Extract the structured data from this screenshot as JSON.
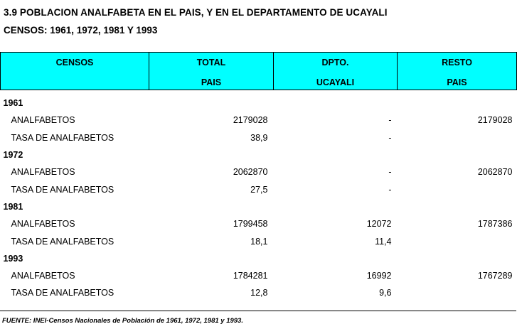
{
  "title": "3.9  POBLACION ANALFABETA EN EL PAIS, Y EN EL DEPARTAMENTO DE UCAYALI",
  "subtitle": "CENSOS: 1961, 1972, 1981 Y 1993",
  "header": {
    "col1": [
      "CENSOS",
      ""
    ],
    "col2": [
      "TOTAL",
      "PAIS"
    ],
    "col3": [
      "DPTO.",
      "UCAYALI"
    ],
    "col4": [
      "RESTO",
      "PAIS"
    ]
  },
  "groups": [
    {
      "year": "1961",
      "rows": [
        {
          "label": "ANALFABETOS",
          "total": "2179028",
          "ucayali": "-",
          "resto": "2179028"
        },
        {
          "label": "TASA DE ANALFABETOS",
          "total": "38,9",
          "ucayali": "-",
          "resto": ""
        }
      ]
    },
    {
      "year": "1972",
      "rows": [
        {
          "label": "ANALFABETOS",
          "total": "2062870",
          "ucayali": "-",
          "resto": "2062870"
        },
        {
          "label": "TASA DE ANALFABETOS",
          "total": "27,5",
          "ucayali": "-",
          "resto": ""
        }
      ]
    },
    {
      "year": "1981",
      "rows": [
        {
          "label": "ANALFABETOS",
          "total": "1799458",
          "ucayali": "12072",
          "resto": "1787386"
        },
        {
          "label": "TASA DE ANALFABETOS",
          "total": "18,1",
          "ucayali": "11,4",
          "resto": ""
        }
      ]
    },
    {
      "year": "1993",
      "rows": [
        {
          "label": "ANALFABETOS",
          "total": "1784281",
          "ucayali": "16992",
          "resto": "1767289"
        },
        {
          "label": "TASA DE ANALFABETOS",
          "total": "12,8",
          "ucayali": "9,6",
          "resto": ""
        }
      ]
    }
  ],
  "source": "FUENTE: INEI-Censos Nacionales de Población de 1961, 1972, 1981 y 1993.",
  "colors": {
    "header_bg": "#00ffff"
  }
}
